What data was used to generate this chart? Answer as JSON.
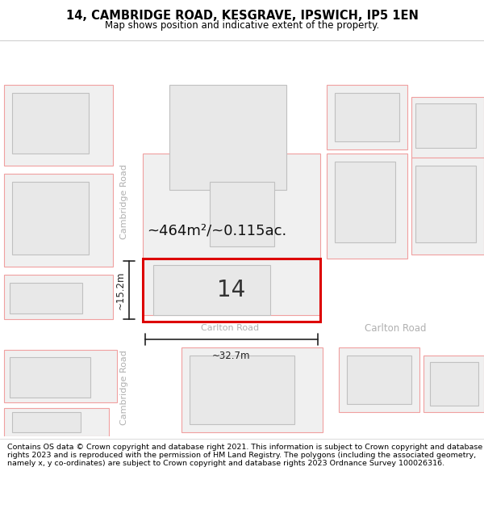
{
  "title": "14, CAMBRIDGE ROAD, KESGRAVE, IPSWICH, IP5 1EN",
  "subtitle": "Map shows position and indicative extent of the property.",
  "footer": "Contains OS data © Crown copyright and database right 2021. This information is subject to Crown copyright and database rights 2023 and is reproduced with the permission of HM Land Registry. The polygons (including the associated geometry, namely x, y co-ordinates) are subject to Crown copyright and database rights 2023 Ordnance Survey 100026316.",
  "area_label": "~464m²/~0.115ac.",
  "number_label": "14",
  "dim_width": "~32.7m",
  "dim_height": "~15.2m",
  "cambridge_road_label": "Cambridge Road",
  "carlton_road_label": "Carlton Road",
  "carlton_road_label2": "Carlton Road",
  "bg_color": "#f5f5f5",
  "building_fill": "#e8e8e8",
  "building_edge": "#c0c0c0",
  "plot_fill": "#f0f0f0",
  "plot_edge": "#f0a0a0",
  "highlight_fill": "#f0f0f0",
  "highlight_edge": "#dd0000",
  "road_label_color": "#b0b0b0",
  "dim_color": "#222222",
  "title_fontsize": 10.5,
  "subtitle_fontsize": 8.5,
  "footer_fontsize": 6.8,
  "area_fontsize": 13,
  "number_fontsize": 20,
  "road_fontsize": 8
}
